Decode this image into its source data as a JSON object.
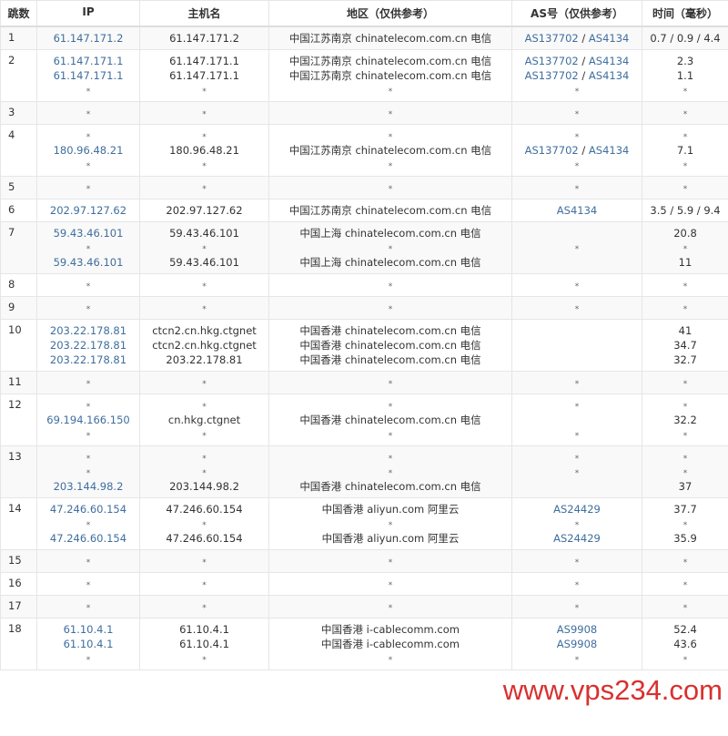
{
  "headers": [
    "跳数",
    "IP",
    "主机名",
    "地区（仅供参考）",
    "AS号（仅供参考）",
    "时间（毫秒）"
  ],
  "link_color": "#3f6e9e",
  "rows": [
    {
      "hop": "1",
      "ip": [
        "61.147.171.2"
      ],
      "host": [
        "61.147.171.2"
      ],
      "region": [
        "中国江苏南京 chinatelecom.com.cn 电信"
      ],
      "as": [
        [
          "AS137702",
          "AS4134"
        ]
      ],
      "time": [
        "0.7 / 0.9 / 4.4"
      ]
    },
    {
      "hop": "2",
      "ip": [
        "61.147.171.1",
        "61.147.171.1",
        "*"
      ],
      "host": [
        "61.147.171.1",
        "61.147.171.1",
        "*"
      ],
      "region": [
        "中国江苏南京 chinatelecom.com.cn 电信",
        "中国江苏南京 chinatelecom.com.cn 电信",
        "*"
      ],
      "as": [
        [
          "AS137702",
          "AS4134"
        ],
        [
          "AS137702",
          "AS4134"
        ],
        "*"
      ],
      "time": [
        "2.3",
        "1.1",
        "*"
      ]
    },
    {
      "hop": "3",
      "ip": [
        "*"
      ],
      "host": [
        "*"
      ],
      "region": [
        "*"
      ],
      "as": [
        "*"
      ],
      "time": [
        "*"
      ]
    },
    {
      "hop": "4",
      "ip": [
        "*",
        "180.96.48.21",
        "*"
      ],
      "host": [
        "*",
        "180.96.48.21",
        "*"
      ],
      "region": [
        "*",
        "中国江苏南京 chinatelecom.com.cn 电信",
        "*"
      ],
      "as": [
        "*",
        [
          "AS137702",
          "AS4134"
        ],
        "*"
      ],
      "time": [
        "*",
        "7.1",
        "*"
      ]
    },
    {
      "hop": "5",
      "ip": [
        "*"
      ],
      "host": [
        "*"
      ],
      "region": [
        "*"
      ],
      "as": [
        "*"
      ],
      "time": [
        "*"
      ]
    },
    {
      "hop": "6",
      "ip": [
        "202.97.127.62"
      ],
      "host": [
        "202.97.127.62"
      ],
      "region": [
        "中国江苏南京 chinatelecom.com.cn 电信"
      ],
      "as": [
        [
          "AS4134"
        ]
      ],
      "time": [
        "3.5 / 5.9 / 9.4"
      ]
    },
    {
      "hop": "7",
      "ip": [
        "59.43.46.101",
        "*",
        "59.43.46.101"
      ],
      "host": [
        "59.43.46.101",
        "*",
        "59.43.46.101"
      ],
      "region": [
        "中国上海 chinatelecom.com.cn 电信",
        "*",
        "中国上海 chinatelecom.com.cn 电信"
      ],
      "as": [
        "",
        "*",
        ""
      ],
      "time": [
        "20.8",
        "*",
        "11"
      ]
    },
    {
      "hop": "8",
      "ip": [
        "*"
      ],
      "host": [
        "*"
      ],
      "region": [
        "*"
      ],
      "as": [
        "*"
      ],
      "time": [
        "*"
      ]
    },
    {
      "hop": "9",
      "ip": [
        "*"
      ],
      "host": [
        "*"
      ],
      "region": [
        "*"
      ],
      "as": [
        "*"
      ],
      "time": [
        "*"
      ]
    },
    {
      "hop": "10",
      "ip": [
        "203.22.178.81",
        "203.22.178.81",
        "203.22.178.81"
      ],
      "host": [
        "ctcn2.cn.hkg.ctgnet",
        "ctcn2.cn.hkg.ctgnet",
        "203.22.178.81"
      ],
      "region": [
        "中国香港 chinatelecom.com.cn 电信",
        "中国香港 chinatelecom.com.cn 电信",
        "中国香港 chinatelecom.com.cn 电信"
      ],
      "as": [
        "",
        "",
        ""
      ],
      "time": [
        "41",
        "34.7",
        "32.7"
      ]
    },
    {
      "hop": "11",
      "ip": [
        "*"
      ],
      "host": [
        "*"
      ],
      "region": [
        "*"
      ],
      "as": [
        "*"
      ],
      "time": [
        "*"
      ]
    },
    {
      "hop": "12",
      "ip": [
        "*",
        "69.194.166.150",
        "*"
      ],
      "host": [
        "*",
        "cn.hkg.ctgnet",
        "*"
      ],
      "region": [
        "*",
        "中国香港 chinatelecom.com.cn 电信",
        "*"
      ],
      "as": [
        "*",
        "",
        "*"
      ],
      "time": [
        "*",
        "32.2",
        "*"
      ]
    },
    {
      "hop": "13",
      "ip": [
        "*",
        "*",
        "203.144.98.2"
      ],
      "host": [
        "*",
        "*",
        "203.144.98.2"
      ],
      "region": [
        "*",
        "*",
        "中国香港 chinatelecom.com.cn 电信"
      ],
      "as": [
        "*",
        "*",
        ""
      ],
      "time": [
        "*",
        "*",
        "37"
      ]
    },
    {
      "hop": "14",
      "ip": [
        "47.246.60.154",
        "*",
        "47.246.60.154"
      ],
      "host": [
        "47.246.60.154",
        "*",
        "47.246.60.154"
      ],
      "region": [
        "中国香港 aliyun.com 阿里云",
        "*",
        "中国香港 aliyun.com 阿里云"
      ],
      "as": [
        [
          "AS24429"
        ],
        "*",
        [
          "AS24429"
        ]
      ],
      "time": [
        "37.7",
        "*",
        "35.9"
      ]
    },
    {
      "hop": "15",
      "ip": [
        "*"
      ],
      "host": [
        "*"
      ],
      "region": [
        "*"
      ],
      "as": [
        "*"
      ],
      "time": [
        "*"
      ]
    },
    {
      "hop": "16",
      "ip": [
        "*"
      ],
      "host": [
        "*"
      ],
      "region": [
        "*"
      ],
      "as": [
        "*"
      ],
      "time": [
        "*"
      ]
    },
    {
      "hop": "17",
      "ip": [
        "*"
      ],
      "host": [
        "*"
      ],
      "region": [
        "*"
      ],
      "as": [
        "*"
      ],
      "time": [
        "*"
      ]
    },
    {
      "hop": "18",
      "ip": [
        "61.10.4.1",
        "61.10.4.1",
        "*"
      ],
      "host": [
        "61.10.4.1",
        "61.10.4.1",
        "*"
      ],
      "region": [
        "中国香港 i-cablecomm.com",
        "中国香港 i-cablecomm.com",
        "*"
      ],
      "as": [
        [
          "AS9908"
        ],
        [
          "AS9908"
        ],
        "*"
      ],
      "time": [
        "52.4",
        "43.6",
        "*"
      ]
    }
  ],
  "watermark": "www.vps234.com"
}
